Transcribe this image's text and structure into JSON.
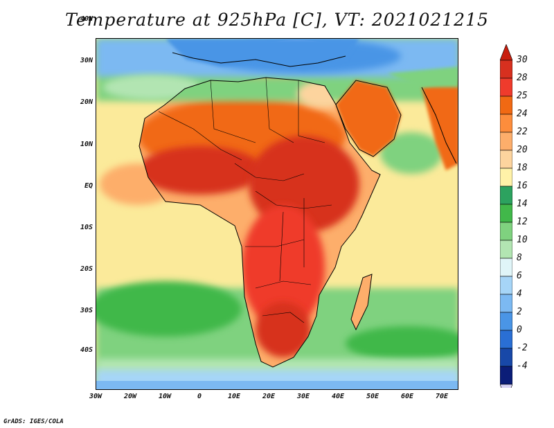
{
  "title": "Temperature at 925hPa [C], VT: 2021021215",
  "footer": "GrADS: IGES/COLA",
  "lat_labels": [
    "40N",
    "30N",
    "20N",
    "10N",
    "EQ",
    "10S",
    "20S",
    "30S",
    "40S"
  ],
  "lon_labels": [
    "30W",
    "20W",
    "10W",
    "0",
    "10E",
    "20E",
    "30E",
    "40E",
    "50E",
    "60E",
    "70E"
  ],
  "colorbar": {
    "levels": [
      "30",
      "28",
      "25",
      "24",
      "22",
      "20",
      "18",
      "16",
      "14",
      "12",
      "10",
      "8",
      "6",
      "4",
      "2",
      "0",
      "-2",
      "-4"
    ],
    "colors": [
      "#d7301f",
      "#ef3b2c",
      "#f16913",
      "#fd8d3c",
      "#fdae6b",
      "#fdd49e",
      "#fff2a8",
      "#2ca25f",
      "#41b84a",
      "#7fd27f",
      "#b2e5b2",
      "#e0f5f8",
      "#a6d5f7",
      "#7cb9f2",
      "#4a95e6",
      "#2a6fd4",
      "#1848a8",
      "#0b1d78"
    ],
    "top_arrow_color": "#c81e0e",
    "bottom_arrow_color": "#d8d3f5"
  }
}
